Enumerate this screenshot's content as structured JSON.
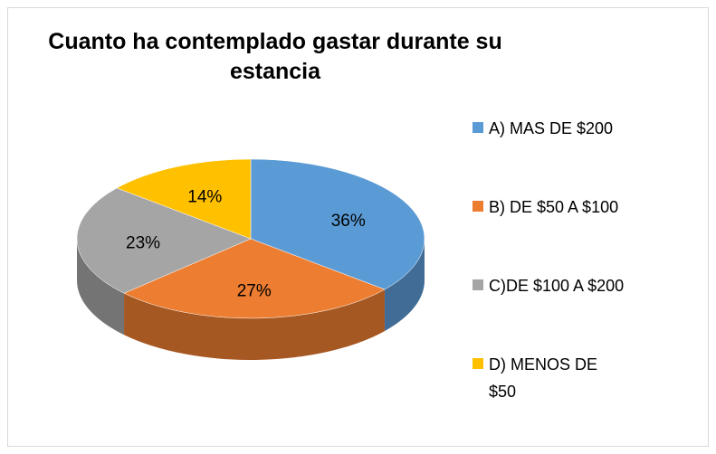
{
  "chart_data": {
    "type": "pie",
    "title": "Cuanto ha contemplado gastar durante su estancia",
    "categories": [
      "A) MAS DE $200",
      "B) DE $50 A $100",
      "C)DE $100 A $200",
      "D) MENOS DE $50"
    ],
    "values": [
      36,
      27,
      23,
      14
    ],
    "value_labels": [
      "36%",
      "27%",
      "23%",
      "14%"
    ],
    "colors": [
      "#5b9bd5",
      "#ed7d31",
      "#a5a5a5",
      "#ffc000"
    ],
    "legend": "right"
  }
}
